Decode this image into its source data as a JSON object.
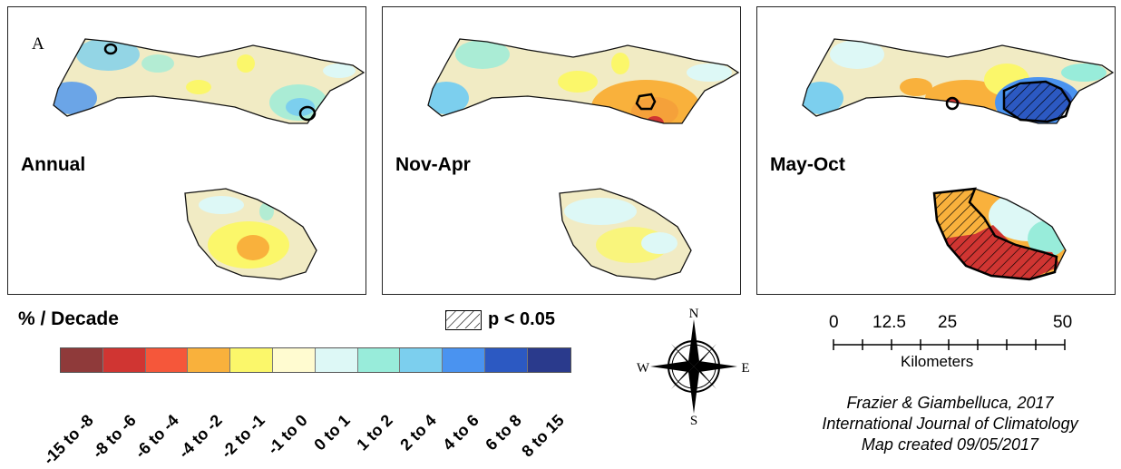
{
  "panels": [
    {
      "id": "annual",
      "title": "Annual",
      "letter": "A"
    },
    {
      "id": "nov-apr",
      "title": "Nov-Apr",
      "letter": ""
    },
    {
      "id": "may-oct",
      "title": "May-Oct",
      "letter": ""
    }
  ],
  "legend": {
    "title": "% / Decade",
    "significance_label": "p < 0.05",
    "bins": [
      {
        "label": "-15 to -8",
        "color": "#8f3a3a"
      },
      {
        "label": "-8 to -6",
        "color": "#d03532"
      },
      {
        "label": "-6 to -4",
        "color": "#f5573a"
      },
      {
        "label": "-4 to -2",
        "color": "#f9b13c"
      },
      {
        "label": "-2 to -1",
        "color": "#fbf76a"
      },
      {
        "label": "-1 to 0",
        "color": "#fffbd0"
      },
      {
        "label": "0 to 1",
        "color": "#ddf8f6"
      },
      {
        "label": "1 to 2",
        "color": "#98ecda"
      },
      {
        "label": "2 to 4",
        "color": "#7ccfee"
      },
      {
        "label": "4 to 6",
        "color": "#4a93f0"
      },
      {
        "label": "6 to 8",
        "color": "#2c59c2"
      },
      {
        "label": "8 to 15",
        "color": "#2a3a8c"
      }
    ]
  },
  "compass": {
    "n": "N",
    "s": "S",
    "e": "E",
    "w": "W"
  },
  "scale": {
    "ticks": [
      "0",
      "12.5",
      "25",
      "50"
    ],
    "unit": "Kilometers"
  },
  "credit": {
    "line1": "Frazier & Giambelluca, 2017",
    "line2": "International Journal of Climatology",
    "line3": "Map created 09/05/2017"
  },
  "colors": {
    "outline": "#111111",
    "land_base": "#f1ebc4"
  }
}
